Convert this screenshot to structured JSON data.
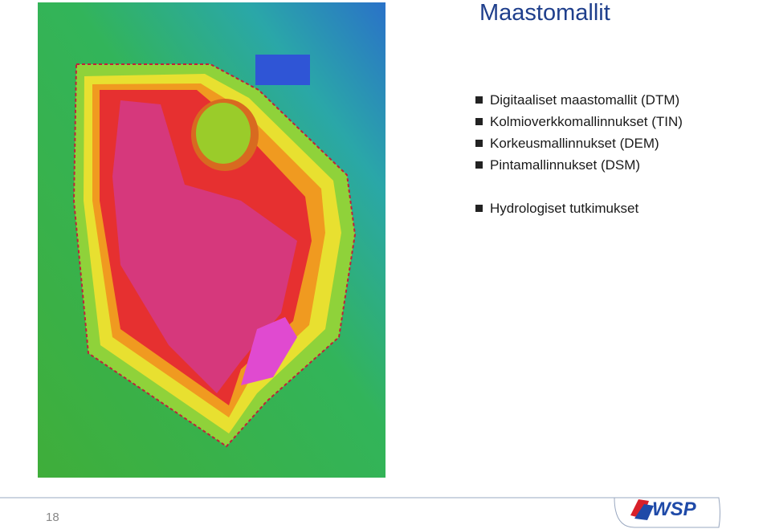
{
  "title": "Maastomallit",
  "bullets": [
    "Digitaaliset maastomallit (DTM)",
    "Kolmioverkkomallinnukset (TIN)",
    "Korkeusmallinnukset (DEM)",
    "Pintamallinnukset (DSM)",
    "Hydrologiset tutkimukset"
  ],
  "footer": {
    "page_number": "18",
    "logo": "WSP"
  }
}
